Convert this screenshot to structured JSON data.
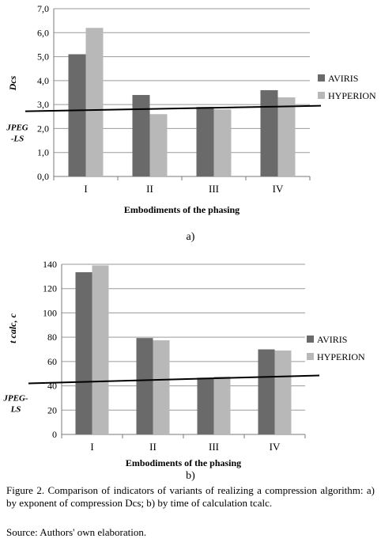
{
  "chart_data": [
    {
      "type": "bar",
      "categories": [
        "I",
        "II",
        "III",
        "IV"
      ],
      "series": [
        {
          "name": "AVIRIS",
          "values": [
            5.1,
            3.4,
            2.9,
            3.6
          ]
        },
        {
          "name": "HYPERION",
          "values": [
            6.2,
            2.6,
            2.8,
            3.3
          ]
        }
      ],
      "title": "",
      "xlabel": "Embodiments of the phasing",
      "ylabel": "Dcs",
      "ylim": [
        0,
        7
      ],
      "yticks": [
        "0,0",
        "1,0",
        "2,0",
        "3,0",
        "4,0",
        "5,0",
        "6,0",
        "7,0"
      ],
      "reference_line": {
        "label": "JPEG -LS",
        "value": 2.95
      },
      "grid": true,
      "legend": "right",
      "colors": {
        "AVIRIS": "#6a6a6a",
        "HYPERION": "#b8b8b8"
      },
      "panel_label": "a)"
    },
    {
      "type": "bar",
      "categories": [
        "I",
        "II",
        "III",
        "IV"
      ],
      "series": [
        {
          "name": "AVIRIS",
          "values": [
            143,
            85,
            50,
            75
          ]
        },
        {
          "name": "HYPERION",
          "values": [
            149,
            83,
            51,
            74
          ]
        }
      ],
      "title": "",
      "xlabel": "Embodiments of the phasing",
      "ylabel": "t calc, c",
      "ylim": [
        0,
        150
      ],
      "yticks": [
        "0",
        "20",
        "40",
        "60",
        "80",
        "100",
        "120",
        "140"
      ],
      "reference_line": {
        "label": "JPEG- LS",
        "value": 52
      },
      "grid": true,
      "legend": "right",
      "colors": {
        "AVIRIS": "#6a6a6a",
        "HYPERION": "#b8b8b8"
      },
      "panel_label": "b)"
    }
  ],
  "caption": "Figure 2. Comparison of indicators of variants of realizing a compression algorithm: a) by exponent of compression Dcs; b) by time of calculation tcalc.",
  "source": "Source: Authors' own elaboration."
}
